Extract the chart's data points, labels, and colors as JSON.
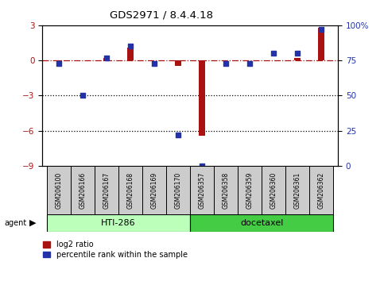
{
  "title": "GDS2971 / 8.4.4.18",
  "samples": [
    "GSM206100",
    "GSM206166",
    "GSM206167",
    "GSM206168",
    "GSM206169",
    "GSM206170",
    "GSM206357",
    "GSM206358",
    "GSM206359",
    "GSM206360",
    "GSM206361",
    "GSM206362"
  ],
  "log2_ratio": [
    -0.05,
    0.0,
    0.2,
    1.1,
    0.0,
    -0.5,
    -6.4,
    0.0,
    0.0,
    0.0,
    0.2,
    2.8
  ],
  "pct_rank": [
    73,
    50,
    77,
    85,
    73,
    22,
    0,
    73,
    73,
    80,
    80,
    97
  ],
  "group1_label": "HTI-286",
  "group2_label": "docetaxel",
  "group1_count": 6,
  "group2_count": 6,
  "ylim_left": [
    -9,
    3
  ],
  "ylim_right": [
    0,
    100
  ],
  "yticks_left": [
    -9,
    -6,
    -3,
    0,
    3
  ],
  "yticks_right": [
    0,
    25,
    50,
    75,
    100
  ],
  "hline_y": 0,
  "dotted_lines": [
    -3,
    -6
  ],
  "bar_color_red": "#AA1111",
  "bar_color_blue": "#2233AA",
  "group1_color": "#BBFFBB",
  "group2_color": "#44CC44",
  "header_color": "#CCCCCC",
  "legend_red": "log2 ratio",
  "legend_blue": "percentile rank within the sample",
  "bar_width": 0.25
}
